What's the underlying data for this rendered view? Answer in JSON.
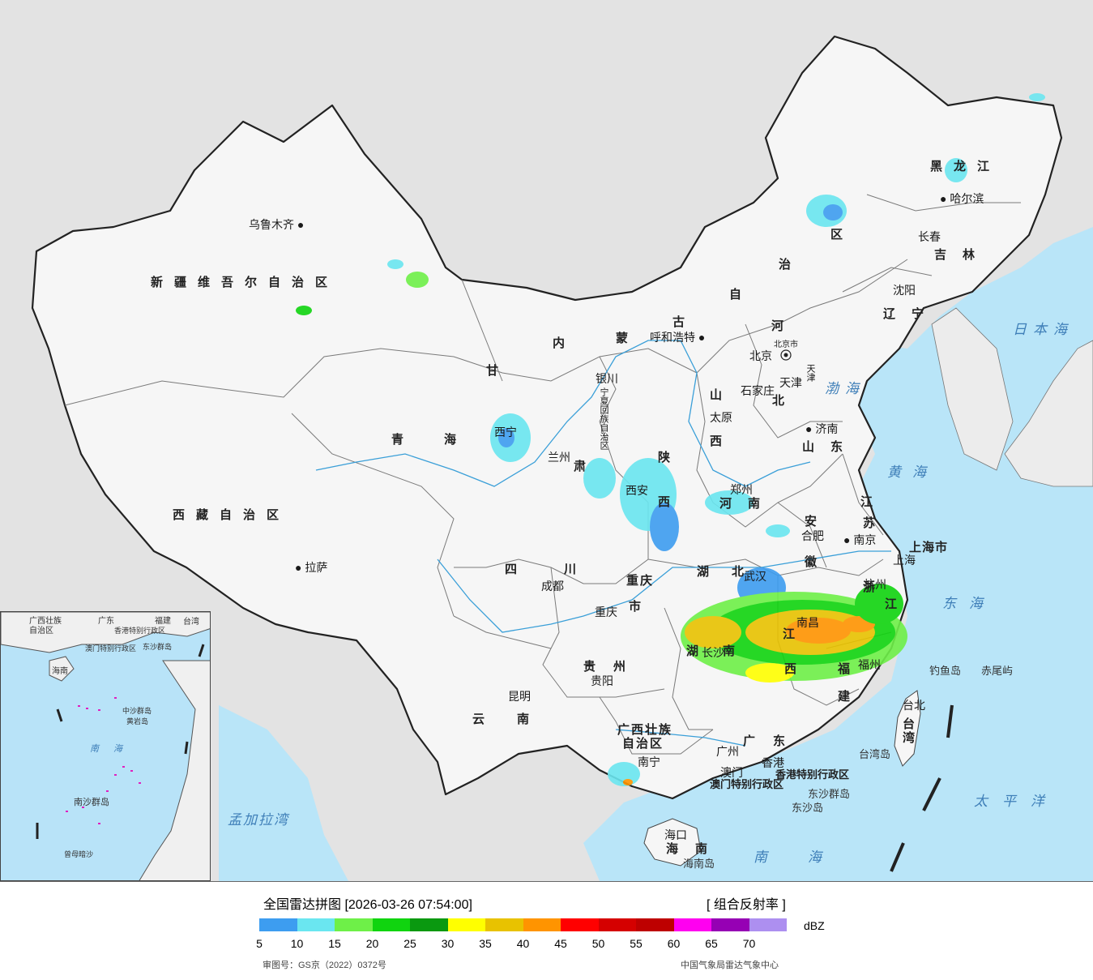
{
  "legend": {
    "title": "全国雷达拼图 [2026-03-26 07:54:00]",
    "product": "[ 组合反射率 ]",
    "unit": "dBZ",
    "scale_colors": [
      "#3d9df0",
      "#6ae6f0",
      "#6ef048",
      "#10d40f",
      "#0a9910",
      "#ffff00",
      "#e8c200",
      "#ff9400",
      "#ff0000",
      "#d50000",
      "#be0000",
      "#ff00f0",
      "#9600b4",
      "#ad8ff0"
    ],
    "scale_ticks": [
      "5",
      "10",
      "15",
      "20",
      "25",
      "30",
      "35",
      "40",
      "45",
      "50",
      "55",
      "60",
      "65",
      "70"
    ],
    "approval": "审图号：GS京（2022）0372号",
    "source": "中国气象局雷达气象中心"
  },
  "provinces": [
    "新疆维吾尔自治区",
    "西藏自治区",
    "青海",
    "甘",
    "肃",
    "内",
    "蒙",
    "古",
    "自",
    "治",
    "区",
    "黑龙江",
    "吉林",
    "辽宁",
    "河",
    "北",
    "山东",
    "山",
    "西",
    "陕",
    "西",
    "河",
    "南",
    "江",
    "苏",
    "安",
    "徽",
    "湖",
    "北",
    "四",
    "川",
    "重庆",
    "市",
    "湖",
    "南",
    "江",
    "西",
    "浙",
    "江",
    "福",
    "建",
    "贵州",
    "云南",
    "广西壮族",
    "自治区",
    "广",
    "东",
    "海",
    "南",
    "台湾",
    "宁夏回族自治区",
    "上海市",
    "天津",
    "北京市",
    "香港特别行政区",
    "澳门特别行政区"
  ],
  "cities": [
    "乌鲁木齐",
    "拉萨",
    "西宁",
    "兰州",
    "银川",
    "呼和浩特",
    "北京",
    "天津",
    "石家庄",
    "太原",
    "济南",
    "郑州",
    "西安",
    "合肥",
    "南京",
    "上海",
    "杭州",
    "武汉",
    "长沙",
    "南昌",
    "福州",
    "台北",
    "成都",
    "重庆",
    "贵阳",
    "昆明",
    "南宁",
    "广州",
    "香港",
    "澳门",
    "海口",
    "沈阳",
    "长春",
    "哈尔滨"
  ],
  "seas": [
    "日本海",
    "渤海",
    "黄海",
    "东海",
    "太平洋",
    "南海",
    "孟加拉湾"
  ],
  "islands": [
    "钓鱼岛",
    "赤尾屿",
    "台湾岛",
    "东沙群岛",
    "东沙岛",
    "海南岛"
  ],
  "inset": {
    "labels": [
      "广西壮族",
      "自治区",
      "广东",
      "福建",
      "台湾",
      "香港特别行政区",
      "澳门特别行政区",
      "东沙群岛",
      "海南",
      "南海",
      "中沙群岛",
      "黄岩岛",
      "南沙群岛",
      "曾母暗沙"
    ]
  }
}
